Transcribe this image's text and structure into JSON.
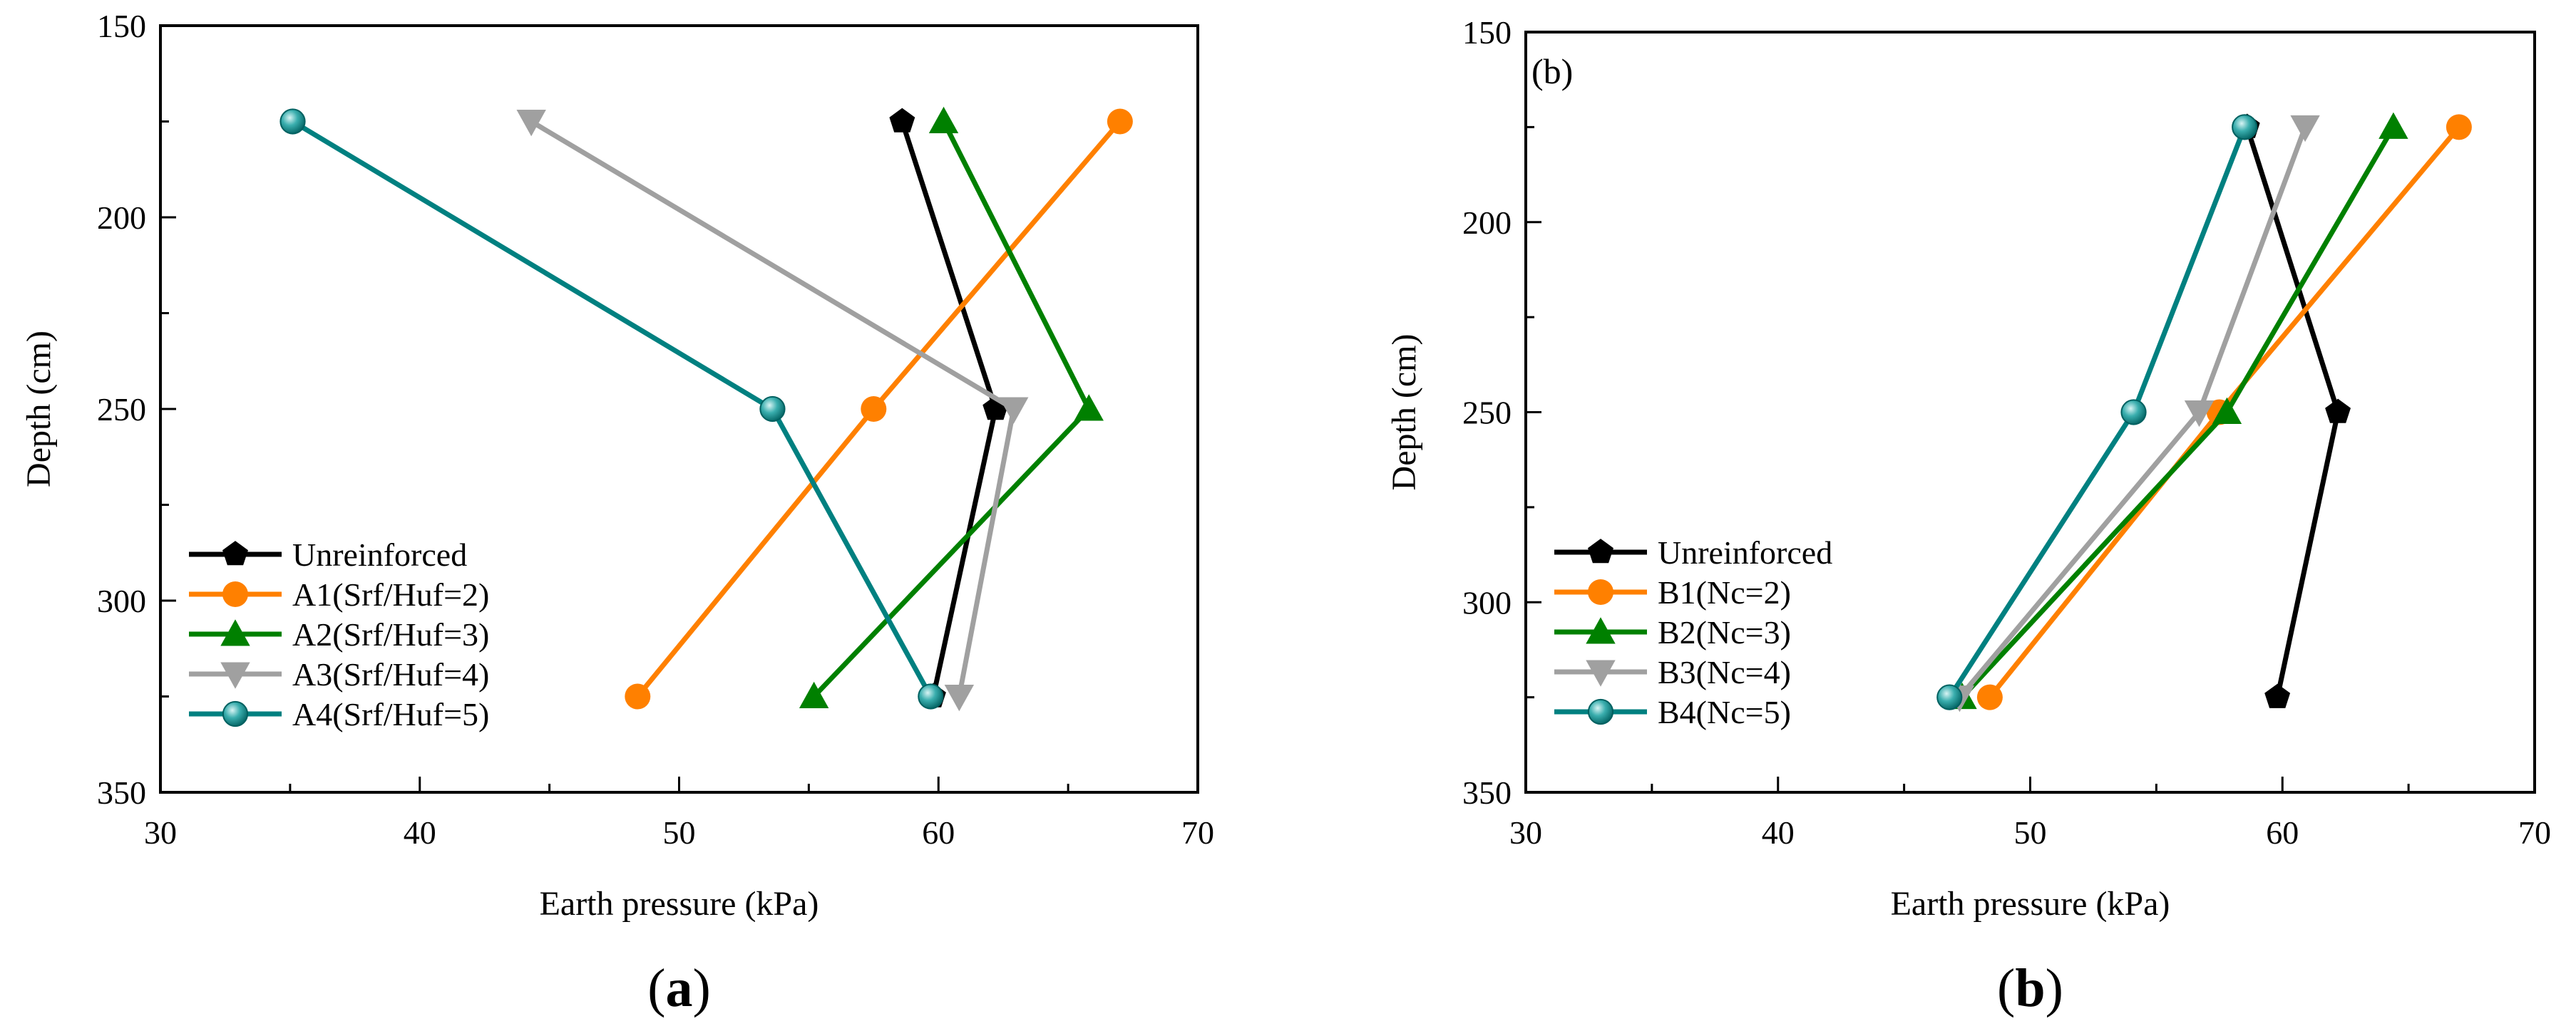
{
  "chart_data": [
    {
      "type": "line",
      "panel_label": "(a)",
      "inner_label": "",
      "xlabel": "Earth pressure (kPa)",
      "ylabel": "Depth (cm)",
      "xlim": [
        30,
        70
      ],
      "ylim": [
        350,
        150
      ],
      "y_inverted": true,
      "x_ticks": [
        30,
        40,
        50,
        60,
        70
      ],
      "y_ticks": [
        150,
        200,
        250,
        300,
        350
      ],
      "grid": false,
      "legend_position": "lower-left",
      "series": [
        {
          "name": "Unreinforced",
          "color": "#000000",
          "marker": "pentagon",
          "x": [
            58.6,
            62.2,
            59.8
          ],
          "y": [
            175,
            250,
            325
          ]
        },
        {
          "name": "A1(Srf/Huf=2)",
          "color": "#ff8000",
          "marker": "circle",
          "x": [
            67.0,
            57.5,
            48.4
          ],
          "y": [
            175,
            250,
            325
          ]
        },
        {
          "name": "A2(Srf/Huf=3)",
          "color": "#008000",
          "marker": "triangle-up",
          "x": [
            60.2,
            65.8,
            55.2
          ],
          "y": [
            175,
            250,
            325
          ]
        },
        {
          "name": "A3(Srf/Huf=4)",
          "color": "#a0a0a0",
          "marker": "triangle-down",
          "x": [
            44.3,
            62.9,
            60.8
          ],
          "y": [
            175,
            250,
            325
          ]
        },
        {
          "name": "A4(Srf/Huf=5)",
          "color": "#008080",
          "marker": "sphere",
          "x": [
            35.1,
            53.6,
            59.7
          ],
          "y": [
            175,
            250,
            325
          ]
        }
      ]
    },
    {
      "type": "line",
      "panel_label": "(b)",
      "inner_label": "(b)",
      "xlabel": "Earth pressure (kPa)",
      "ylabel": "Depth (cm)",
      "xlim": [
        30,
        70
      ],
      "ylim": [
        350,
        150
      ],
      "y_inverted": true,
      "x_ticks": [
        30,
        40,
        50,
        60,
        70
      ],
      "y_ticks": [
        150,
        200,
        250,
        300,
        350
      ],
      "grid": false,
      "legend_position": "lower-left",
      "series": [
        {
          "name": "Unreinforced",
          "color": "#000000",
          "marker": "pentagon",
          "x": [
            58.6,
            62.2,
            59.8
          ],
          "y": [
            175,
            250,
            325
          ]
        },
        {
          "name": "B1(Nc=2)",
          "color": "#ff8000",
          "marker": "circle",
          "x": [
            67.0,
            57.5,
            48.4
          ],
          "y": [
            175,
            250,
            325
          ]
        },
        {
          "name": "B2(Nc=3)",
          "color": "#008000",
          "marker": "triangle-up",
          "x": [
            64.4,
            57.8,
            47.3
          ],
          "y": [
            175,
            250,
            325
          ]
        },
        {
          "name": "B3(Nc=4)",
          "color": "#a0a0a0",
          "marker": "triangle-down",
          "x": [
            60.9,
            56.7,
            47.2
          ],
          "y": [
            175,
            250,
            325
          ]
        },
        {
          "name": "B4(Nc=5)",
          "color": "#008080",
          "marker": "sphere",
          "x": [
            58.5,
            54.1,
            46.8
          ],
          "y": [
            175,
            250,
            325
          ]
        }
      ]
    }
  ]
}
